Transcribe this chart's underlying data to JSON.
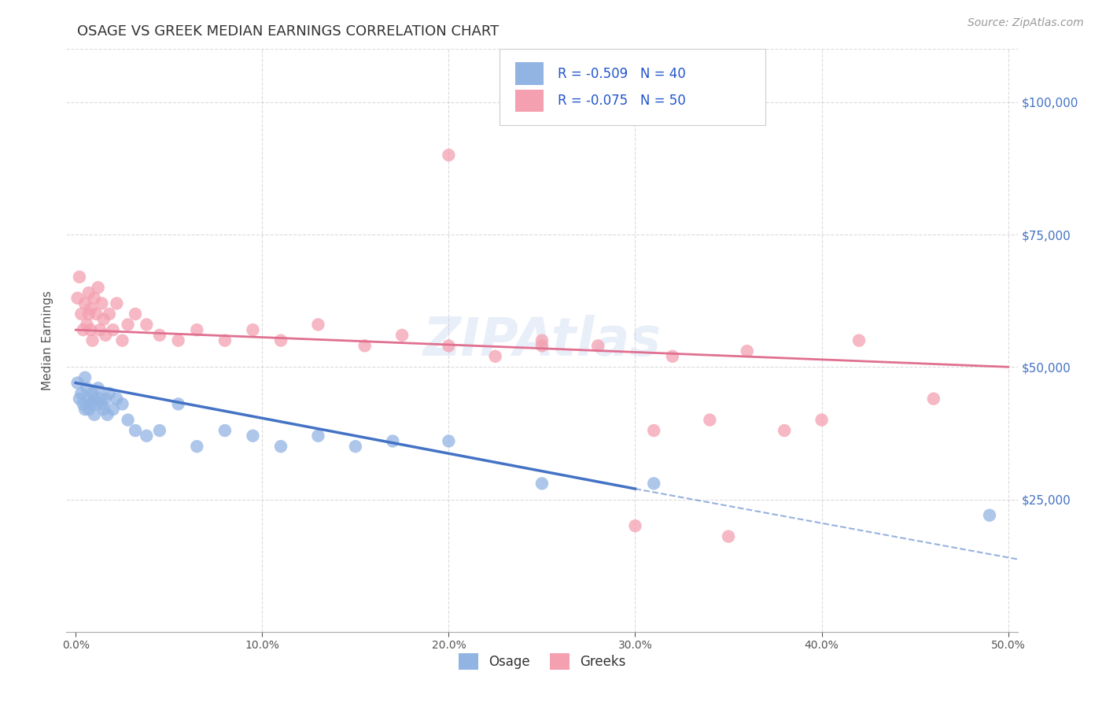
{
  "title": "OSAGE VS GREEK MEDIAN EARNINGS CORRELATION CHART",
  "source": "Source: ZipAtlas.com",
  "ylabel": "Median Earnings",
  "xlabel_ticks": [
    "0.0%",
    "10.0%",
    "20.0%",
    "30.0%",
    "40.0%",
    "50.0%"
  ],
  "xlabel_vals": [
    0.0,
    0.1,
    0.2,
    0.3,
    0.4,
    0.5
  ],
  "ytick_labels": [
    "$25,000",
    "$50,000",
    "$75,000",
    "$100,000"
  ],
  "ytick_vals": [
    25000,
    50000,
    75000,
    100000
  ],
  "ylim": [
    0,
    110000
  ],
  "xlim": [
    -0.005,
    0.505
  ],
  "watermark": "ZIPAtlas",
  "legend_text1": "R = -0.509   N = 40",
  "legend_text2": "R = -0.075   N = 50",
  "osage_color": "#92b4e3",
  "greek_color": "#f4a0b0",
  "osage_line_color": "#4472c4",
  "greek_line_color": "#e07090",
  "background_color": "#ffffff",
  "grid_color": "#cccccc",
  "title_fontsize": 13,
  "axis_label_fontsize": 11,
  "tick_fontsize": 10,
  "legend_fontsize": 12,
  "source_fontsize": 10,
  "osage_x": [
    0.001,
    0.002,
    0.003,
    0.004,
    0.005,
    0.005,
    0.006,
    0.007,
    0.007,
    0.008,
    0.009,
    0.01,
    0.01,
    0.011,
    0.012,
    0.013,
    0.014,
    0.015,
    0.016,
    0.017,
    0.018,
    0.02,
    0.022,
    0.025,
    0.028,
    0.032,
    0.038,
    0.045,
    0.055,
    0.065,
    0.08,
    0.095,
    0.11,
    0.13,
    0.15,
    0.17,
    0.2,
    0.25,
    0.31,
    0.49
  ],
  "osage_y": [
    47000,
    44000,
    45000,
    43000,
    42000,
    48000,
    46000,
    44000,
    42000,
    43000,
    45000,
    41000,
    44000,
    43000,
    46000,
    44000,
    43000,
    42000,
    44000,
    41000,
    45000,
    42000,
    44000,
    43000,
    40000,
    38000,
    37000,
    38000,
    43000,
    35000,
    38000,
    37000,
    35000,
    37000,
    35000,
    36000,
    36000,
    28000,
    28000,
    22000
  ],
  "greek_x": [
    0.001,
    0.002,
    0.003,
    0.004,
    0.005,
    0.006,
    0.007,
    0.007,
    0.008,
    0.008,
    0.009,
    0.01,
    0.011,
    0.012,
    0.013,
    0.014,
    0.015,
    0.016,
    0.018,
    0.02,
    0.022,
    0.025,
    0.028,
    0.032,
    0.038,
    0.045,
    0.055,
    0.065,
    0.08,
    0.095,
    0.11,
    0.13,
    0.155,
    0.175,
    0.2,
    0.225,
    0.25,
    0.28,
    0.32,
    0.36,
    0.2,
    0.25,
    0.31,
    0.34,
    0.38,
    0.42,
    0.46,
    0.3,
    0.35,
    0.4
  ],
  "greek_y": [
    63000,
    67000,
    60000,
    57000,
    62000,
    58000,
    60000,
    64000,
    57000,
    61000,
    55000,
    63000,
    60000,
    65000,
    57000,
    62000,
    59000,
    56000,
    60000,
    57000,
    62000,
    55000,
    58000,
    60000,
    58000,
    56000,
    55000,
    57000,
    55000,
    57000,
    55000,
    58000,
    54000,
    56000,
    54000,
    52000,
    54000,
    54000,
    52000,
    53000,
    90000,
    55000,
    38000,
    40000,
    38000,
    55000,
    44000,
    20000,
    18000,
    40000
  ]
}
